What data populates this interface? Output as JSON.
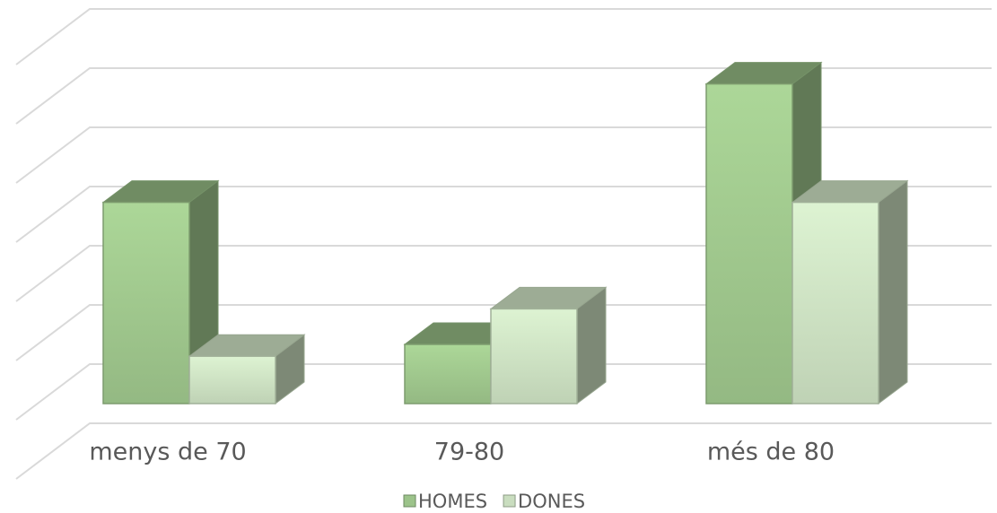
{
  "chart_data": {
    "type": "bar3d",
    "categories": [
      "menys de 70",
      "79-80",
      "més de 80"
    ],
    "series": [
      {
        "name": "HOMES",
        "color": "#9cc38a",
        "values": [
          3.4,
          1.0,
          5.4
        ]
      },
      {
        "name": "DONES",
        "color": "#c9ddbf",
        "values": [
          0.8,
          1.6,
          3.4
        ]
      }
    ],
    "ylim": [
      0,
      7
    ],
    "yticks": [
      0,
      1,
      2,
      3,
      4,
      5,
      6,
      7
    ],
    "grid": true,
    "legend": "bottom"
  }
}
